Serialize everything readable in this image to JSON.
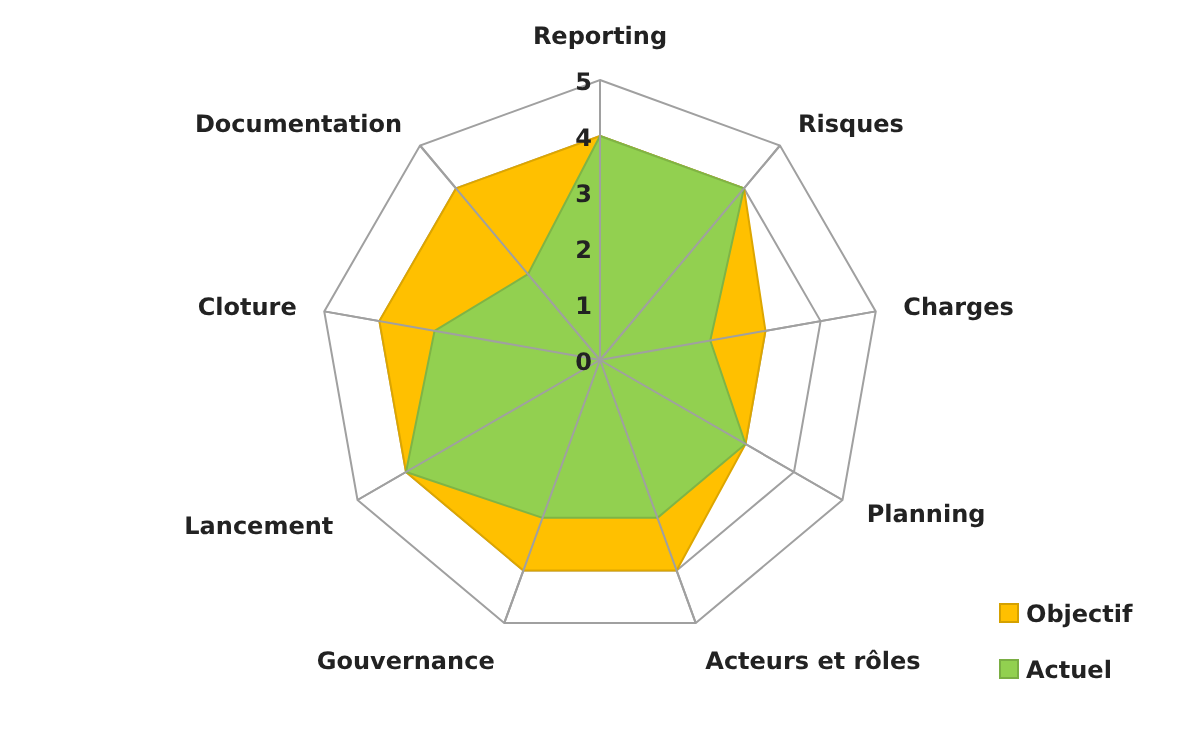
{
  "chart_data": {
    "type": "radar",
    "categories": [
      "Reporting",
      "Risques",
      "Charges",
      "Planning",
      "Acteurs et rôles",
      "Gouvernance",
      "Lancement",
      "Cloture",
      "Documentation"
    ],
    "series": [
      {
        "name": "Objectif",
        "color": "#ffc000",
        "values": [
          4,
          4,
          3,
          3,
          4,
          4,
          4,
          4,
          4
        ]
      },
      {
        "name": "Actuel",
        "color": "#92d050",
        "values": [
          4,
          4,
          2,
          3,
          3,
          3,
          4,
          3,
          2
        ]
      }
    ],
    "ylim": [
      0,
      5
    ],
    "yticks": [
      0,
      1,
      2,
      3,
      4,
      5
    ],
    "grid": true,
    "legend": "bottom right"
  }
}
